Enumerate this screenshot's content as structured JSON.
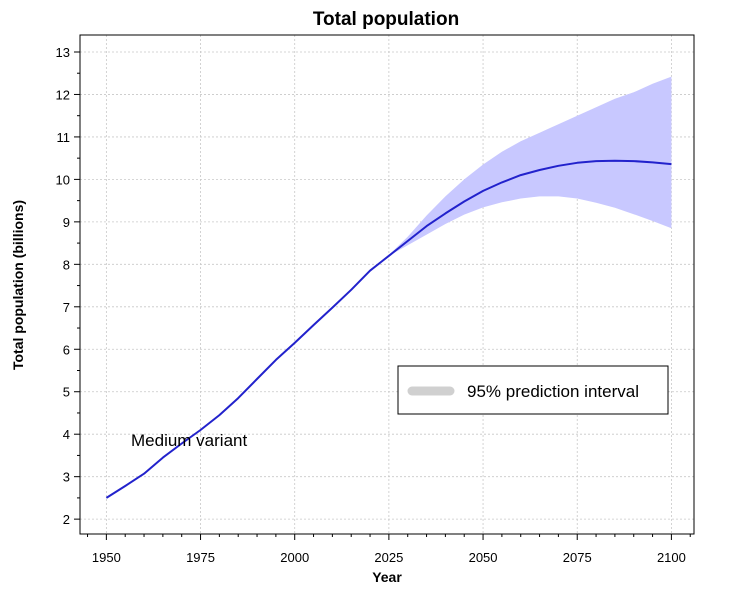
{
  "chart_data": {
    "type": "line",
    "title": "Total population",
    "xlabel": "Year",
    "ylabel": "Total population (billions)",
    "xlim": [
      1943,
      2106
    ],
    "ylim": [
      1.65,
      13.4
    ],
    "x_ticks": [
      1950,
      1975,
      2000,
      2025,
      2050,
      2075,
      2100
    ],
    "x_minor_step": 5,
    "y_ticks": [
      2,
      3,
      4,
      5,
      6,
      7,
      8,
      9,
      10,
      11,
      12,
      13
    ],
    "y_minor_step": 0.5,
    "grid": true,
    "legend_position": "center-right",
    "legend_label": "95% prediction interval",
    "annotation": "Medium variant",
    "colors": {
      "line": "#2222cc",
      "band": "#c8c8ff",
      "grid": "#c8c8c8",
      "legend_swatch": "#d0d0d0"
    },
    "series": [
      {
        "name": "Medium variant",
        "x": [
          1950,
          1955,
          1960,
          1965,
          1970,
          1975,
          1980,
          1985,
          1990,
          1995,
          2000,
          2005,
          2010,
          2015,
          2020,
          2025,
          2030,
          2035,
          2040,
          2045,
          2050,
          2055,
          2060,
          2065,
          2070,
          2075,
          2080,
          2085,
          2090,
          2095,
          2100
        ],
        "y": [
          2.5,
          2.78,
          3.07,
          3.45,
          3.78,
          4.1,
          4.45,
          4.85,
          5.3,
          5.75,
          6.15,
          6.57,
          6.98,
          7.4,
          7.85,
          8.2,
          8.55,
          8.9,
          9.2,
          9.48,
          9.73,
          9.93,
          10.1,
          10.22,
          10.32,
          10.39,
          10.43,
          10.44,
          10.43,
          10.4,
          10.36
        ]
      }
    ],
    "interval": {
      "name": "95% prediction interval",
      "x": [
        2025,
        2030,
        2035,
        2040,
        2045,
        2050,
        2055,
        2060,
        2065,
        2070,
        2075,
        2080,
        2085,
        2090,
        2095,
        2100
      ],
      "lower": [
        8.2,
        8.45,
        8.7,
        8.95,
        9.17,
        9.34,
        9.46,
        9.55,
        9.6,
        9.6,
        9.55,
        9.45,
        9.33,
        9.18,
        9.02,
        8.85
      ],
      "upper": [
        8.22,
        8.65,
        9.15,
        9.6,
        10.0,
        10.35,
        10.65,
        10.9,
        11.1,
        11.3,
        11.5,
        11.7,
        11.9,
        12.05,
        12.25,
        12.42
      ]
    }
  }
}
